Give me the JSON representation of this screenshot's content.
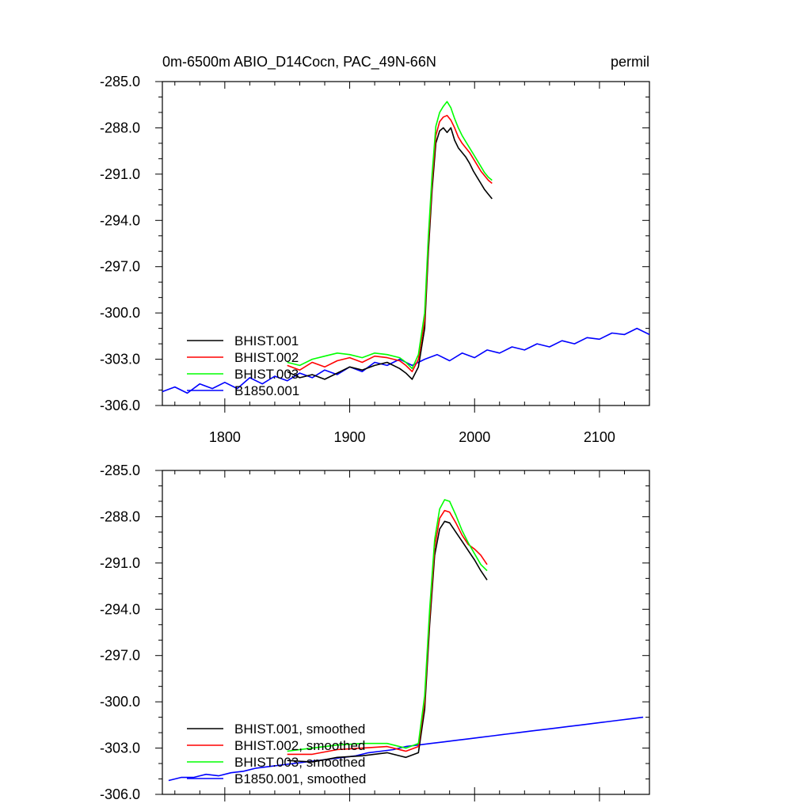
{
  "header": {
    "title": "0m-6500m ABIO_D14Cocn, PAC_49N-66N",
    "units": "permil"
  },
  "colors": {
    "BHIST.001": "#000000",
    "BHIST.002": "#ff0000",
    "BHIST.003": "#00ff00",
    "B1850.001": "#0000ff"
  },
  "chart_data": [
    {
      "type": "line",
      "xlim": [
        1750,
        2140
      ],
      "ylim": [
        -306.0,
        -285.0
      ],
      "x_ticks": [
        1800,
        1900,
        2000,
        2100
      ],
      "x_tick_labels": [
        "1800",
        "1900",
        "2000",
        "2100"
      ],
      "y_ticks": [
        -285.0,
        -288.0,
        -291.0,
        -294.0,
        -297.0,
        -300.0,
        -303.0,
        -306.0
      ],
      "y_tick_labels": [
        "-285.0",
        "-288.0",
        "-291.0",
        "-294.0",
        "-297.0",
        "-300.0",
        "-303.0",
        "-306.0"
      ],
      "legend": {
        "position": "bottom-left"
      },
      "series": [
        {
          "name": "BHIST.001",
          "color": "#000000",
          "x": [
            1850,
            1860,
            1870,
            1880,
            1890,
            1900,
            1910,
            1920,
            1930,
            1940,
            1945,
            1950,
            1955,
            1960,
            1963,
            1966,
            1969,
            1972,
            1975,
            1978,
            1981,
            1984,
            1987,
            1990,
            1993,
            1996,
            1999,
            2002,
            2005,
            2008,
            2011,
            2014
          ],
          "y": [
            -303.8,
            -304.2,
            -304.0,
            -304.3,
            -303.9,
            -303.5,
            -303.7,
            -303.4,
            -303.2,
            -303.6,
            -303.9,
            -304.3,
            -303.5,
            -301.0,
            -296.0,
            -292.0,
            -289.0,
            -288.2,
            -288.0,
            -288.3,
            -288.0,
            -288.8,
            -289.3,
            -289.6,
            -289.9,
            -290.3,
            -290.8,
            -291.2,
            -291.6,
            -292.0,
            -292.3,
            -292.6
          ]
        },
        {
          "name": "BHIST.002",
          "color": "#ff0000",
          "x": [
            1850,
            1860,
            1870,
            1880,
            1890,
            1900,
            1910,
            1920,
            1930,
            1940,
            1945,
            1950,
            1955,
            1960,
            1963,
            1966,
            1969,
            1972,
            1975,
            1978,
            1981,
            1984,
            1987,
            1990,
            1993,
            1996,
            1999,
            2002,
            2005,
            2008,
            2011,
            2014
          ],
          "y": [
            -303.4,
            -303.7,
            -303.2,
            -303.5,
            -303.1,
            -302.9,
            -303.2,
            -302.8,
            -302.9,
            -303.1,
            -303.4,
            -303.8,
            -303.0,
            -300.5,
            -295.5,
            -291.5,
            -288.5,
            -287.6,
            -287.3,
            -287.2,
            -287.5,
            -288.0,
            -288.6,
            -289.0,
            -289.3,
            -289.6,
            -290.0,
            -290.4,
            -290.8,
            -291.1,
            -291.4,
            -291.6
          ]
        },
        {
          "name": "BHIST.003",
          "color": "#00ff00",
          "x": [
            1850,
            1860,
            1870,
            1880,
            1890,
            1900,
            1910,
            1920,
            1930,
            1940,
            1945,
            1950,
            1955,
            1960,
            1963,
            1966,
            1969,
            1972,
            1975,
            1978,
            1981,
            1984,
            1987,
            1990,
            1993,
            1996,
            1999,
            2002,
            2005,
            2008,
            2011,
            2014
          ],
          "y": [
            -303.2,
            -303.4,
            -303.0,
            -302.8,
            -302.6,
            -302.7,
            -302.9,
            -302.6,
            -302.7,
            -302.9,
            -303.2,
            -303.6,
            -302.7,
            -300.0,
            -295.0,
            -291.0,
            -287.9,
            -287.0,
            -286.6,
            -286.3,
            -286.7,
            -287.4,
            -288.0,
            -288.5,
            -288.9,
            -289.3,
            -289.7,
            -290.1,
            -290.5,
            -290.9,
            -291.2,
            -291.4
          ]
        },
        {
          "name": "B1850.001",
          "color": "#0000ff",
          "x": [
            1750,
            1760,
            1770,
            1780,
            1790,
            1800,
            1810,
            1820,
            1830,
            1840,
            1850,
            1860,
            1870,
            1880,
            1890,
            1900,
            1910,
            1920,
            1930,
            1940,
            1950,
            1960,
            1970,
            1980,
            1990,
            2000,
            2010,
            2020,
            2030,
            2040,
            2050,
            2060,
            2070,
            2080,
            2090,
            2100,
            2110,
            2120,
            2130,
            2140
          ],
          "y": [
            -305.1,
            -304.8,
            -305.2,
            -304.6,
            -304.9,
            -304.5,
            -304.9,
            -304.2,
            -304.6,
            -304.1,
            -304.4,
            -303.9,
            -304.2,
            -303.7,
            -304.0,
            -303.5,
            -303.8,
            -303.2,
            -303.4,
            -303.0,
            -303.4,
            -303.0,
            -302.7,
            -303.1,
            -302.6,
            -302.9,
            -302.4,
            -302.6,
            -302.2,
            -302.4,
            -302.0,
            -302.2,
            -301.8,
            -302.0,
            -301.6,
            -301.7,
            -301.3,
            -301.4,
            -301.0,
            -301.4
          ]
        }
      ]
    },
    {
      "type": "line",
      "xlim": [
        1750,
        2140
      ],
      "ylim": [
        -306.0,
        -285.0
      ],
      "x_ticks": [
        1800,
        1900,
        2000,
        2100
      ],
      "y_ticks": [
        -285.0,
        -288.0,
        -291.0,
        -294.0,
        -297.0,
        -300.0,
        -303.0,
        -306.0
      ],
      "y_tick_labels": [
        "-285.0",
        "-288.0",
        "-291.0",
        "-294.0",
        "-297.0",
        "-300.0",
        "-303.0",
        "-306.0"
      ],
      "legend": {
        "position": "bottom-left"
      },
      "series": [
        {
          "name": "BHIST.001, smoothed",
          "color": "#000000",
          "x": [
            1850,
            1870,
            1890,
            1910,
            1930,
            1945,
            1955,
            1960,
            1964,
            1968,
            1972,
            1976,
            1980,
            1985,
            1990,
            1995,
            2000,
            2005,
            2010
          ],
          "y": [
            -303.8,
            -303.9,
            -303.6,
            -303.5,
            -303.3,
            -303.6,
            -303.3,
            -300.5,
            -295.0,
            -290.5,
            -288.8,
            -288.3,
            -288.4,
            -289.0,
            -289.6,
            -290.2,
            -290.8,
            -291.5,
            -292.1
          ]
        },
        {
          "name": "BHIST.002, smoothed",
          "color": "#ff0000",
          "x": [
            1850,
            1870,
            1890,
            1910,
            1930,
            1945,
            1955,
            1960,
            1964,
            1968,
            1972,
            1976,
            1980,
            1985,
            1990,
            1995,
            2000,
            2005,
            2010
          ],
          "y": [
            -303.4,
            -303.4,
            -303.1,
            -303.0,
            -302.9,
            -303.2,
            -302.9,
            -300.0,
            -294.5,
            -290.0,
            -288.1,
            -287.6,
            -287.7,
            -288.4,
            -289.2,
            -289.8,
            -290.1,
            -290.5,
            -291.1
          ]
        },
        {
          "name": "BHIST.003, smoothed",
          "color": "#00ff00",
          "x": [
            1850,
            1870,
            1890,
            1910,
            1930,
            1945,
            1955,
            1960,
            1964,
            1968,
            1972,
            1976,
            1980,
            1985,
            1990,
            1995,
            2000,
            2005,
            2010
          ],
          "y": [
            -303.2,
            -303.0,
            -302.8,
            -302.7,
            -302.7,
            -303.0,
            -302.7,
            -299.6,
            -294.0,
            -289.5,
            -287.5,
            -286.9,
            -287.0,
            -287.9,
            -288.9,
            -289.7,
            -290.4,
            -291.1,
            -291.5
          ]
        },
        {
          "name": "B1850.001, smoothed",
          "color": "#0000ff",
          "x": [
            1755,
            1765,
            1775,
            1785,
            1795,
            1805,
            1815,
            1825,
            1835,
            1845,
            1855,
            1865,
            1875,
            1885,
            1895,
            1905,
            1915,
            1925,
            1935,
            1945,
            1955,
            1965,
            1975,
            1985,
            1995,
            2005,
            2015,
            2025,
            2035,
            2045,
            2055,
            2065,
            2075,
            2085,
            2095,
            2105,
            2115,
            2125,
            2135
          ],
          "y": [
            -305.1,
            -304.9,
            -304.9,
            -304.7,
            -304.8,
            -304.6,
            -304.5,
            -304.3,
            -304.2,
            -304.1,
            -304.0,
            -303.9,
            -303.8,
            -303.7,
            -303.6,
            -303.5,
            -303.3,
            -303.2,
            -303.1,
            -302.9,
            -302.8,
            -302.7,
            -302.6,
            -302.5,
            -302.4,
            -302.3,
            -302.2,
            -302.1,
            -302.0,
            -301.9,
            -301.8,
            -301.7,
            -301.6,
            -301.5,
            -301.4,
            -301.3,
            -301.2,
            -301.1,
            -301.0
          ]
        }
      ]
    }
  ]
}
